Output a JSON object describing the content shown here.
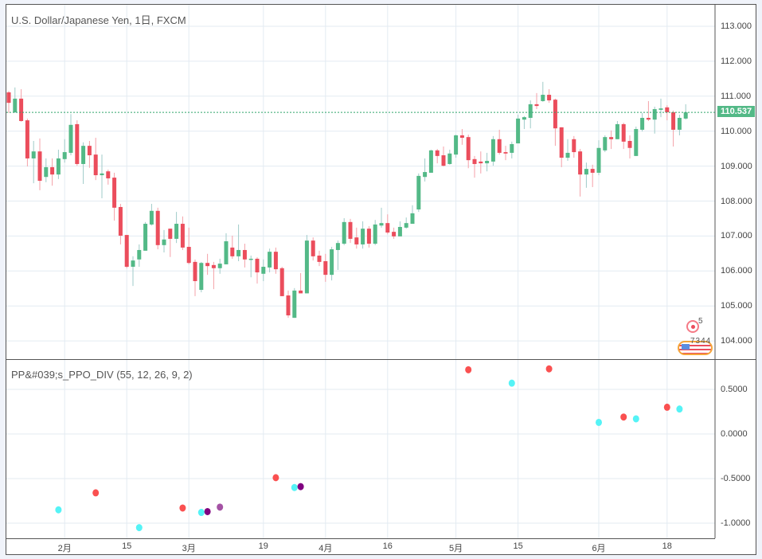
{
  "header": {
    "title": "U.S. Dollar/Japanese Yen, 1日, FXCM"
  },
  "indicator": {
    "title": "PP&#039;s_PPO_DIV (55, 12, 26, 9, 2)"
  },
  "events": {
    "earnings_count": "5",
    "dividends_label": "7344"
  },
  "colors": {
    "up": "#53b987",
    "down": "#eb4d5c",
    "grid": "#e3ebf2",
    "cyan": "#55f3f6",
    "red": "#fa5050",
    "purple": "#800080",
    "light_purple": "#a452a4"
  },
  "chart_data": [
    {
      "type": "candlestick",
      "title": "U.S. Dollar/Japanese Yen, 1日, FXCM",
      "ylim": [
        103.55,
        113.35
      ],
      "y_ticks": [
        "113.000",
        "112.000",
        "111.000",
        "110.000",
        "109.000",
        "108.000",
        "107.000",
        "106.000",
        "105.000",
        "104.000"
      ],
      "y_tick_values": [
        113,
        112,
        111,
        110,
        109,
        108,
        107,
        106,
        105,
        104
      ],
      "last_price": 110.537,
      "last_price_label": "110.537",
      "x_ticks": [
        {
          "bar": 9,
          "label": "2月"
        },
        {
          "bar": 19,
          "label": "15"
        },
        {
          "bar": 29,
          "label": "3月"
        },
        {
          "bar": 41,
          "label": "19"
        },
        {
          "bar": 51,
          "label": "4月"
        },
        {
          "bar": 61,
          "label": "16"
        },
        {
          "bar": 72,
          "label": "5月"
        },
        {
          "bar": 82,
          "label": "15"
        },
        {
          "bar": 95,
          "label": "6月"
        },
        {
          "bar": 106,
          "label": "18"
        }
      ],
      "ohlc": [
        [
          111.11,
          111.15,
          110.52,
          110.81
        ],
        [
          110.54,
          111.25,
          110.52,
          110.93
        ],
        [
          110.93,
          111.2,
          110.27,
          110.29
        ],
        [
          110.31,
          110.36,
          108.99,
          109.22
        ],
        [
          109.22,
          109.72,
          108.51,
          109.42
        ],
        [
          109.42,
          109.79,
          108.31,
          108.58
        ],
        [
          108.69,
          109.22,
          108.54,
          108.97
        ],
        [
          108.97,
          109.22,
          108.44,
          108.76
        ],
        [
          108.76,
          109.47,
          108.63,
          109.22
        ],
        [
          109.2,
          109.77,
          109.1,
          109.4
        ],
        [
          109.38,
          110.49,
          109.31,
          110.18
        ],
        [
          110.2,
          110.31,
          109.01,
          109.06
        ],
        [
          109.06,
          109.68,
          108.49,
          109.58
        ],
        [
          109.58,
          109.72,
          108.95,
          109.31
        ],
        [
          109.33,
          109.81,
          108.6,
          108.74
        ],
        [
          108.74,
          109.33,
          108.08,
          108.79
        ],
        [
          108.85,
          108.9,
          108.47,
          108.65
        ],
        [
          108.67,
          108.81,
          107.44,
          107.81
        ],
        [
          107.83,
          107.92,
          106.76,
          107.01
        ],
        [
          107.03,
          107.03,
          106.08,
          106.12
        ],
        [
          106.12,
          106.42,
          105.57,
          106.3
        ],
        [
          106.33,
          106.76,
          106.12,
          106.6
        ],
        [
          106.58,
          107.4,
          106.58,
          107.35
        ],
        [
          107.33,
          107.92,
          107.3,
          107.72
        ],
        [
          107.72,
          107.81,
          106.62,
          106.74
        ],
        [
          106.74,
          107.17,
          106.53,
          106.9
        ],
        [
          107.21,
          107.21,
          106.4,
          106.92
        ],
        [
          106.92,
          107.69,
          106.8,
          107.35
        ],
        [
          107.35,
          107.56,
          106.6,
          106.67
        ],
        [
          106.69,
          107.24,
          106.19,
          106.23
        ],
        [
          106.26,
          106.33,
          105.28,
          105.71
        ],
        [
          105.46,
          106.26,
          105.39,
          106.23
        ],
        [
          106.23,
          106.49,
          105.89,
          106.14
        ],
        [
          106.17,
          106.26,
          105.48,
          106.08
        ],
        [
          106.08,
          106.35,
          105.92,
          106.21
        ],
        [
          106.19,
          107.08,
          106.19,
          106.85
        ],
        [
          106.67,
          107.01,
          106.35,
          106.42
        ],
        [
          106.42,
          107.33,
          106.28,
          106.6
        ],
        [
          106.6,
          106.78,
          106.1,
          106.33
        ],
        [
          106.33,
          106.44,
          105.82,
          106.35
        ],
        [
          106.35,
          106.39,
          105.64,
          105.96
        ],
        [
          105.92,
          106.33,
          105.71,
          106.12
        ],
        [
          106.1,
          106.64,
          105.96,
          106.55
        ],
        [
          106.55,
          106.67,
          105.92,
          106.05
        ],
        [
          106.08,
          106.12,
          105.28,
          105.28
        ],
        [
          105.3,
          105.44,
          104.66,
          104.73
        ],
        [
          104.66,
          105.51,
          104.66,
          105.44
        ],
        [
          105.44,
          105.94,
          105.36,
          105.36
        ],
        [
          105.36,
          107.03,
          105.36,
          106.87
        ],
        [
          106.87,
          106.96,
          106.3,
          106.42
        ],
        [
          106.44,
          106.58,
          106.14,
          106.26
        ],
        [
          106.28,
          106.49,
          105.69,
          105.89
        ],
        [
          105.89,
          106.69,
          105.73,
          106.62
        ],
        [
          106.6,
          106.87,
          106.03,
          106.8
        ],
        [
          106.78,
          107.51,
          106.74,
          107.4
        ],
        [
          107.4,
          107.49,
          106.8,
          106.92
        ],
        [
          106.96,
          107.24,
          106.64,
          106.76
        ],
        [
          106.76,
          107.42,
          106.64,
          107.21
        ],
        [
          107.21,
          107.28,
          106.67,
          106.78
        ],
        [
          106.78,
          107.46,
          106.74,
          107.33
        ],
        [
          107.3,
          107.81,
          107.24,
          107.37
        ],
        [
          107.37,
          107.62,
          107.05,
          107.1
        ],
        [
          107.12,
          107.24,
          106.92,
          106.99
        ],
        [
          106.99,
          107.42,
          106.99,
          107.26
        ],
        [
          107.24,
          107.53,
          107.21,
          107.37
        ],
        [
          107.35,
          107.88,
          107.35,
          107.65
        ],
        [
          107.76,
          108.79,
          107.69,
          108.72
        ],
        [
          108.69,
          109.22,
          108.56,
          108.83
        ],
        [
          108.81,
          109.47,
          108.81,
          109.45
        ],
        [
          109.45,
          109.49,
          109.08,
          109.29
        ],
        [
          109.31,
          109.56,
          108.99,
          109.01
        ],
        [
          109.06,
          109.47,
          109.04,
          109.36
        ],
        [
          109.33,
          109.9,
          109.24,
          109.88
        ],
        [
          109.88,
          110.06,
          109.61,
          109.81
        ],
        [
          109.83,
          109.9,
          108.94,
          109.17
        ],
        [
          109.2,
          109.29,
          108.67,
          109.06
        ],
        [
          109.13,
          109.42,
          108.79,
          109.08
        ],
        [
          109.08,
          109.38,
          108.85,
          109.15
        ],
        [
          109.13,
          109.86,
          109.01,
          109.77
        ],
        [
          109.77,
          110.04,
          109.33,
          109.38
        ],
        [
          109.4,
          109.58,
          109.17,
          109.36
        ],
        [
          109.38,
          109.7,
          109.22,
          109.63
        ],
        [
          109.65,
          110.47,
          109.65,
          110.36
        ],
        [
          110.33,
          110.43,
          110.06,
          110.4
        ],
        [
          110.38,
          110.88,
          110.08,
          110.77
        ],
        [
          110.77,
          111.09,
          110.63,
          110.72
        ],
        [
          110.86,
          111.41,
          110.84,
          111.04
        ],
        [
          111.04,
          111.2,
          110.81,
          110.88
        ],
        [
          110.9,
          110.93,
          109.58,
          110.08
        ],
        [
          110.11,
          110.11,
          108.97,
          109.24
        ],
        [
          109.24,
          109.77,
          109.15,
          109.38
        ],
        [
          109.77,
          109.86,
          109.24,
          109.4
        ],
        [
          109.42,
          109.49,
          108.13,
          108.76
        ],
        [
          108.76,
          109.1,
          108.38,
          108.92
        ],
        [
          108.92,
          109.04,
          108.4,
          108.81
        ],
        [
          108.81,
          109.74,
          108.74,
          109.52
        ],
        [
          109.45,
          109.88,
          109.4,
          109.83
        ],
        [
          109.83,
          110.02,
          109.49,
          109.77
        ],
        [
          109.77,
          110.29,
          109.77,
          110.2
        ],
        [
          110.2,
          110.24,
          109.49,
          109.7
        ],
        [
          109.72,
          109.88,
          109.22,
          109.52
        ],
        [
          109.29,
          110.13,
          109.29,
          110.06
        ],
        [
          110.04,
          110.52,
          109.99,
          110.38
        ],
        [
          110.38,
          110.86,
          110.29,
          110.33
        ],
        [
          110.33,
          110.7,
          109.93,
          110.63
        ],
        [
          110.61,
          110.93,
          110.4,
          110.65
        ],
        [
          110.68,
          110.74,
          110.31,
          110.54
        ],
        [
          110.54,
          110.59,
          109.56,
          110.04
        ],
        [
          110.04,
          110.47,
          109.88,
          110.38
        ],
        [
          110.36,
          110.77,
          110.33,
          110.537
        ]
      ]
    },
    {
      "type": "scatter",
      "title": "PP&#039;s_PPO_DIV (55, 12, 26, 9, 2)",
      "ylim": [
        -1.13,
        0.85
      ],
      "y_ticks": [
        "0.5000",
        "0.0000",
        "-0.5000",
        "-1.0000"
      ],
      "y_tick_values": [
        0.5,
        0,
        -0.5,
        -1
      ],
      "points": [
        {
          "bar": 8,
          "value": -0.85,
          "color": "cyan"
        },
        {
          "bar": 14,
          "value": -0.66,
          "color": "red"
        },
        {
          "bar": 21,
          "value": -1.05,
          "color": "cyan"
        },
        {
          "bar": 28,
          "value": -0.83,
          "color": "red"
        },
        {
          "bar": 31,
          "value": -0.88,
          "color": "cyan"
        },
        {
          "bar": 32,
          "value": -0.87,
          "color": "purple"
        },
        {
          "bar": 34,
          "value": -0.82,
          "color": "light_purple"
        },
        {
          "bar": 43,
          "value": -0.49,
          "color": "red"
        },
        {
          "bar": 46,
          "value": -0.6,
          "color": "cyan"
        },
        {
          "bar": 47,
          "value": -0.59,
          "color": "purple"
        },
        {
          "bar": 74,
          "value": 0.72,
          "color": "red"
        },
        {
          "bar": 81,
          "value": 0.57,
          "color": "cyan"
        },
        {
          "bar": 87,
          "value": 0.73,
          "color": "red"
        },
        {
          "bar": 95,
          "value": 0.13,
          "color": "cyan"
        },
        {
          "bar": 99,
          "value": 0.19,
          "color": "red"
        },
        {
          "bar": 101,
          "value": 0.17,
          "color": "cyan"
        },
        {
          "bar": 106,
          "value": 0.3,
          "color": "red"
        },
        {
          "bar": 108,
          "value": 0.28,
          "color": "cyan"
        }
      ]
    }
  ]
}
